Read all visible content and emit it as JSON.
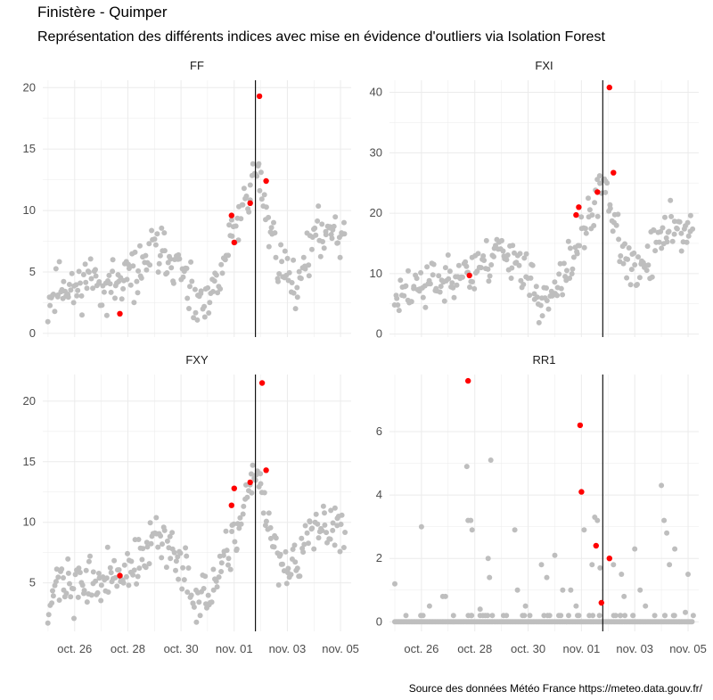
{
  "title": "Finistère - Quimper",
  "subtitle": "Représentation des différents indices avec mise en évidence d'outliers via Isolation Forest",
  "source": "Source des données Météo France https://meteo.data.gouv.fr/",
  "colors": {
    "normal": "#bebebe",
    "outlier": "#ff0000",
    "vline": "#000000",
    "grid": "#ebebeb"
  },
  "chart_data": {
    "type": "scatter",
    "x_ticks": [
      "oct. 26",
      "oct. 28",
      "oct. 30",
      "nov. 01",
      "nov. 03",
      "nov. 05"
    ],
    "x_tick_days": [
      0,
      2,
      4,
      6,
      8,
      10
    ],
    "x_range_days": [
      -1.2,
      10.4
    ],
    "vline_day": 6.8,
    "panels": [
      {
        "name": "FF",
        "ylim": [
          -0.3,
          20.6
        ],
        "yticks": [
          0,
          5,
          10,
          15,
          20
        ],
        "anchors": [
          [
            -1,
            2.5
          ],
          [
            -0.5,
            4.0
          ],
          [
            0,
            3.3
          ],
          [
            0.5,
            4.8
          ],
          [
            1,
            4.0
          ],
          [
            1.5,
            3.8
          ],
          [
            2,
            4.5
          ],
          [
            2.5,
            5.3
          ],
          [
            3,
            7.0
          ],
          [
            3.5,
            6.3
          ],
          [
            4,
            5.0
          ],
          [
            4.5,
            2.3
          ],
          [
            5,
            2.0
          ],
          [
            5.5,
            5.0
          ],
          [
            6,
            8.3
          ],
          [
            6.3,
            10.2
          ],
          [
            6.6,
            11.5
          ],
          [
            6.8,
            14.0
          ],
          [
            7.0,
            11.8
          ],
          [
            7.3,
            8.8
          ],
          [
            7.8,
            5.3
          ],
          [
            8.3,
            4.0
          ],
          [
            8.8,
            6.8
          ],
          [
            9.3,
            8.3
          ],
          [
            9.8,
            8.8
          ],
          [
            10.2,
            7.8
          ]
        ],
        "spread": 1.3,
        "seed": 11,
        "outliers": [
          {
            "x": 1.7,
            "y": 1.6
          },
          {
            "x": 6.0,
            "y": 7.4
          },
          {
            "x": 5.9,
            "y": 9.6
          },
          {
            "x": 6.6,
            "y": 10.6
          },
          {
            "x": 6.95,
            "y": 19.3
          },
          {
            "x": 7.2,
            "y": 12.4
          }
        ]
      },
      {
        "name": "FXI",
        "ylim": [
          -0.5,
          42.0
        ],
        "yticks": [
          0,
          10,
          20,
          30,
          40
        ],
        "anchors": [
          [
            -1,
            5.0
          ],
          [
            -0.5,
            8.0
          ],
          [
            0,
            7.0
          ],
          [
            0.5,
            9.0
          ],
          [
            1,
            9.0
          ],
          [
            1.5,
            11.0
          ],
          [
            2,
            10.0
          ],
          [
            2.5,
            12.0
          ],
          [
            3,
            14.5
          ],
          [
            3.5,
            13.0
          ],
          [
            4,
            9.0
          ],
          [
            4.5,
            5.5
          ],
          [
            5,
            6.0
          ],
          [
            5.5,
            11.0
          ],
          [
            6,
            16.0
          ],
          [
            6.3,
            19.0
          ],
          [
            6.6,
            22.0
          ],
          [
            6.8,
            28.0
          ],
          [
            7.0,
            23.0
          ],
          [
            7.3,
            17.0
          ],
          [
            7.8,
            10.0
          ],
          [
            8.3,
            11.0
          ],
          [
            8.8,
            14.0
          ],
          [
            9.3,
            19.0
          ],
          [
            9.8,
            17.0
          ],
          [
            10.2,
            16.0
          ]
        ],
        "spread": 2.5,
        "seed": 23,
        "outliers": [
          {
            "x": 1.8,
            "y": 9.7
          },
          {
            "x": 5.8,
            "y": 19.7
          },
          {
            "x": 5.9,
            "y": 21.0
          },
          {
            "x": 6.6,
            "y": 23.5
          },
          {
            "x": 7.05,
            "y": 40.8
          },
          {
            "x": 7.2,
            "y": 26.7
          }
        ]
      },
      {
        "name": "FXY",
        "ylim": [
          1.0,
          22.2
        ],
        "yticks": [
          5,
          10,
          15,
          20
        ],
        "anchors": [
          [
            -1,
            3.0
          ],
          [
            -0.5,
            5.5
          ],
          [
            0,
            4.0
          ],
          [
            0.5,
            5.5
          ],
          [
            1,
            5.0
          ],
          [
            1.5,
            5.5
          ],
          [
            2,
            6.0
          ],
          [
            2.5,
            7.0
          ],
          [
            3,
            8.5
          ],
          [
            3.5,
            8.0
          ],
          [
            4,
            6.5
          ],
          [
            4.5,
            4.0
          ],
          [
            5,
            3.5
          ],
          [
            5.5,
            6.0
          ],
          [
            6,
            8.0
          ],
          [
            6.3,
            10.0
          ],
          [
            6.6,
            12.5
          ],
          [
            6.8,
            15.0
          ],
          [
            7.0,
            13.0
          ],
          [
            7.3,
            9.5
          ],
          [
            7.8,
            6.0
          ],
          [
            8.3,
            6.5
          ],
          [
            8.8,
            8.5
          ],
          [
            9.3,
            9.5
          ],
          [
            9.8,
            10.0
          ],
          [
            10.2,
            9.5
          ]
        ],
        "spread": 1.3,
        "seed": 37,
        "outliers": [
          {
            "x": 1.7,
            "y": 5.6
          },
          {
            "x": 5.9,
            "y": 11.4
          },
          {
            "x": 6.0,
            "y": 12.8
          },
          {
            "x": 6.6,
            "y": 13.3
          },
          {
            "x": 7.05,
            "y": 21.5
          },
          {
            "x": 7.2,
            "y": 14.3
          }
        ]
      },
      {
        "name": "RR1",
        "ylim": [
          -0.3,
          7.8
        ],
        "yticks": [
          0,
          2,
          4,
          6
        ],
        "anchors": [
          [
            -1,
            0.0
          ],
          [
            10.2,
            0.0
          ]
        ],
        "spread": 0.0,
        "seed": 51,
        "extra": [
          [
            -1.0,
            1.2
          ],
          [
            0.0,
            3.0
          ],
          [
            0.3,
            0.5
          ],
          [
            0.8,
            0.8
          ],
          [
            1.2,
            0.2
          ],
          [
            1.7,
            4.9
          ],
          [
            1.75,
            3.2
          ],
          [
            1.85,
            3.2
          ],
          [
            1.9,
            2.9
          ],
          [
            2.6,
            5.1
          ],
          [
            2.5,
            2.0
          ],
          [
            2.55,
            1.4
          ],
          [
            2.2,
            0.4
          ],
          [
            3.5,
            2.9
          ],
          [
            3.6,
            1.0
          ],
          [
            3.9,
            0.5
          ],
          [
            4.5,
            1.8
          ],
          [
            4.7,
            1.4
          ],
          [
            5.0,
            2.1
          ],
          [
            5.3,
            1.0
          ],
          [
            5.6,
            1.0
          ],
          [
            5.8,
            0.5
          ],
          [
            6.1,
            2.9
          ],
          [
            6.4,
            1.8
          ],
          [
            6.5,
            3.3
          ],
          [
            6.6,
            3.2
          ],
          [
            6.7,
            1.7
          ],
          [
            7.2,
            1.8
          ],
          [
            7.5,
            1.5
          ],
          [
            7.6,
            0.8
          ],
          [
            8.0,
            2.3
          ],
          [
            8.2,
            1.0
          ],
          [
            9.0,
            4.3
          ],
          [
            9.1,
            3.2
          ],
          [
            9.2,
            2.8
          ],
          [
            9.3,
            1.8
          ],
          [
            9.5,
            2.3
          ],
          [
            9.9,
            0.3
          ],
          [
            10.0,
            1.5
          ],
          [
            8.4,
            0.5
          ],
          [
            0.9,
            0.8
          ]
        ],
        "outliers": [
          {
            "x": 1.75,
            "y": 7.6
          },
          {
            "x": 5.95,
            "y": 6.2
          },
          {
            "x": 6.0,
            "y": 4.1
          },
          {
            "x": 6.55,
            "y": 2.4
          },
          {
            "x": 6.75,
            "y": 0.6
          },
          {
            "x": 7.05,
            "y": 2.0
          }
        ]
      }
    ]
  }
}
